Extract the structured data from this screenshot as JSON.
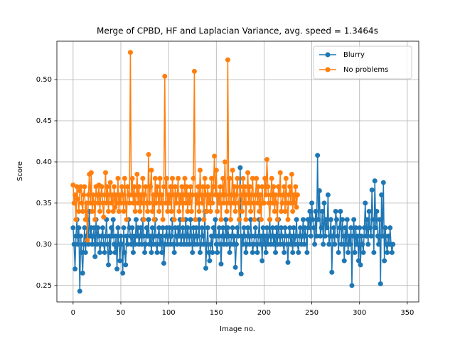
{
  "chart_data": {
    "type": "line",
    "title": "Merge of CPBD, HF and Laplacian Variance, avg. speed = 1.3464s",
    "x_label": "Image no.",
    "y_label": "Score",
    "xlim": [
      -17,
      362
    ],
    "ylim": [
      0.23,
      0.5466
    ],
    "xticks": [
      0,
      50,
      100,
      150,
      200,
      250,
      300,
      350
    ],
    "yticks": [
      0.25,
      {
        "value": 0.3,
        "label": "0.30"
      },
      0.35,
      {
        "value": 0.4,
        "label": "0.40"
      },
      0.45,
      {
        "value": 0.5,
        "label": "0.50"
      }
    ],
    "grid": true,
    "legend": "upper right",
    "series": [
      {
        "name": "Blurry",
        "color": "#1f77b4",
        "values": [
          0.32,
          0.3,
          0.27,
          0.31,
          0.33,
          0.3,
          0.32,
          0.243,
          0.31,
          0.29,
          0.265,
          0.3,
          0.32,
          0.29,
          0.31,
          0.33,
          0.3,
          0.34,
          0.31,
          0.32,
          0.3,
          0.31,
          0.32,
          0.285,
          0.33,
          0.3,
          0.32,
          0.31,
          0.29,
          0.3,
          0.31,
          0.32,
          0.3,
          0.29,
          0.31,
          0.33,
          0.3,
          0.275,
          0.31,
          0.29,
          0.32,
          0.31,
          0.33,
          0.3,
          0.29,
          0.31,
          0.27,
          0.32,
          0.3,
          0.28,
          0.31,
          0.3,
          0.265,
          0.32,
          0.29,
          0.275,
          0.31,
          0.3,
          0.33,
          0.32,
          0.31,
          0.3,
          0.32,
          0.29,
          0.31,
          0.3,
          0.33,
          0.31,
          0.32,
          0.3,
          0.31,
          0.32,
          0.3,
          0.33,
          0.31,
          0.29,
          0.3,
          0.32,
          0.31,
          0.33,
          0.3,
          0.31,
          0.29,
          0.32,
          0.3,
          0.31,
          0.33,
          0.3,
          0.29,
          0.31,
          0.32,
          0.3,
          0.31,
          0.29,
          0.32,
          0.277,
          0.3,
          0.31,
          0.32,
          0.3,
          0.31,
          0.32,
          0.3,
          0.31,
          0.33,
          0.3,
          0.29,
          0.32,
          0.31,
          0.3,
          0.32,
          0.31,
          0.33,
          0.3,
          0.31,
          0.32,
          0.3,
          0.31,
          0.33,
          0.3,
          0.32,
          0.31,
          0.3,
          0.33,
          0.31,
          0.29,
          0.32,
          0.3,
          0.31,
          0.32,
          0.3,
          0.31,
          0.33,
          0.29,
          0.3,
          0.32,
          0.31,
          0.3,
          0.34,
          0.271,
          0.3,
          0.32,
          0.29,
          0.28,
          0.3,
          0.31,
          0.29,
          0.32,
          0.31,
          0.33,
          0.3,
          0.29,
          0.31,
          0.32,
          0.3,
          0.276,
          0.31,
          0.32,
          0.3,
          0.31,
          0.33,
          0.3,
          0.32,
          0.31,
          0.29,
          0.3,
          0.31,
          0.32,
          0.3,
          0.31,
          0.272,
          0.3,
          0.32,
          0.31,
          0.33,
          0.393,
          0.264,
          0.31,
          0.3,
          0.32,
          0.31,
          0.29,
          0.3,
          0.32,
          0.31,
          0.3,
          0.33,
          0.31,
          0.29,
          0.3,
          0.31,
          0.32,
          0.3,
          0.29,
          0.31,
          0.33,
          0.3,
          0.31,
          0.28,
          0.32,
          0.3,
          0.31,
          0.29,
          0.32,
          0.3,
          0.31,
          0.33,
          0.3,
          0.31,
          0.32,
          0.3,
          0.31,
          0.29,
          0.32,
          0.3,
          0.33,
          0.31,
          0.3,
          0.32,
          0.31,
          0.3,
          0.29,
          0.32,
          0.31,
          0.3,
          0.278,
          0.31,
          0.32,
          0.3,
          0.31,
          0.29,
          0.32,
          0.3,
          0.31,
          0.33,
          0.3,
          0.29,
          0.31,
          0.32,
          0.3,
          0.31,
          0.33,
          0.3,
          0.32,
          0.31,
          0.29,
          0.33,
          0.32,
          0.34,
          0.31,
          0.35,
          0.33,
          0.32,
          0.3,
          0.34,
          0.31,
          0.408,
          0.33,
          0.365,
          0.31,
          0.32,
          0.34,
          0.3,
          0.35,
          0.31,
          0.33,
          0.32,
          0.36,
          0.3,
          0.31,
          0.33,
          0.266,
          0.31,
          0.32,
          0.3,
          0.34,
          0.33,
          0.31,
          0.29,
          0.32,
          0.34,
          0.3,
          0.33,
          0.31,
          0.28,
          0.32,
          0.3,
          0.33,
          0.29,
          0.31,
          0.3,
          0.32,
          0.25,
          0.31,
          0.33,
          0.29,
          0.32,
          0.3,
          0.31,
          0.28,
          0.32,
          0.275,
          0.31,
          0.3,
          0.29,
          0.32,
          0.35,
          0.31,
          0.33,
          0.3,
          0.34,
          0.32,
          0.31,
          0.366,
          0.33,
          0.29,
          0.377,
          0.32,
          0.34,
          0.31,
          0.3,
          0.33,
          0.252,
          0.36,
          0.31,
          0.375,
          0.28,
          0.32,
          0.3,
          0.29,
          0.31,
          0.3,
          0.32,
          0.3,
          0.29,
          0.3
        ]
      },
      {
        "name": "No problems",
        "color": "#ff7f0e",
        "values": [
          0.372,
          0.35,
          0.36,
          0.33,
          0.37,
          0.355,
          0.34,
          0.365,
          0.37,
          0.35,
          0.34,
          0.36,
          0.37,
          0.33,
          0.35,
          0.305,
          0.36,
          0.385,
          0.35,
          0.387,
          0.34,
          0.36,
          0.35,
          0.33,
          0.37,
          0.36,
          0.35,
          0.372,
          0.34,
          0.36,
          0.37,
          0.35,
          0.333,
          0.36,
          0.387,
          0.35,
          0.37,
          0.34,
          0.36,
          0.375,
          0.35,
          0.36,
          0.34,
          0.37,
          0.345,
          0.36,
          0.35,
          0.38,
          0.34,
          0.36,
          0.35,
          0.37,
          0.36,
          0.34,
          0.38,
          0.35,
          0.33,
          0.37,
          0.36,
          0.35,
          0.533,
          0.36,
          0.38,
          0.35,
          0.37,
          0.34,
          0.36,
          0.385,
          0.35,
          0.37,
          0.34,
          0.36,
          0.35,
          0.38,
          0.33,
          0.36,
          0.37,
          0.35,
          0.34,
          0.409,
          0.35,
          0.37,
          0.39,
          0.34,
          0.36,
          0.33,
          0.38,
          0.35,
          0.37,
          0.36,
          0.34,
          0.38,
          0.35,
          0.36,
          0.33,
          0.37,
          0.504,
          0.35,
          0.38,
          0.34,
          0.36,
          0.35,
          0.37,
          0.34,
          0.38,
          0.36,
          0.33,
          0.37,
          0.35,
          0.36,
          0.38,
          0.34,
          0.36,
          0.35,
          0.37,
          0.33,
          0.36,
          0.38,
          0.35,
          0.37,
          0.34,
          0.36,
          0.35,
          0.37,
          0.34,
          0.36,
          0.38,
          0.51,
          0.33,
          0.36,
          0.35,
          0.37,
          0.34,
          0.39,
          0.36,
          0.35,
          0.37,
          0.33,
          0.38,
          0.36,
          0.34,
          0.37,
          0.35,
          0.36,
          0.34,
          0.38,
          0.35,
          0.37,
          0.407,
          0.36,
          0.39,
          0.34,
          0.36,
          0.35,
          0.37,
          0.33,
          0.36,
          0.38,
          0.35,
          0.4,
          0.36,
          0.34,
          0.524,
          0.35,
          0.38,
          0.33,
          0.36,
          0.39,
          0.35,
          0.37,
          0.34,
          0.36,
          0.38,
          0.35,
          0.33,
          0.37,
          0.36,
          0.34,
          0.38,
          0.35,
          0.37,
          0.33,
          0.36,
          0.387,
          0.35,
          0.37,
          0.34,
          0.36,
          0.38,
          0.35,
          0.33,
          0.36,
          0.38,
          0.35,
          0.37,
          0.34,
          0.36,
          0.33,
          0.37,
          0.35,
          0.35,
          0.38,
          0.36,
          0.403,
          0.37,
          0.35,
          0.33,
          0.36,
          0.38,
          0.35,
          0.37,
          0.34,
          0.36,
          0.35,
          0.33,
          0.37,
          0.36,
          0.387,
          0.34,
          0.35,
          0.36,
          0.37,
          0.34,
          0.38,
          0.35,
          0.33,
          0.36,
          0.37,
          0.35,
          0.385,
          0.34,
          0.36,
          0.35,
          0.37,
          0.345,
          0.36
        ]
      }
    ]
  }
}
